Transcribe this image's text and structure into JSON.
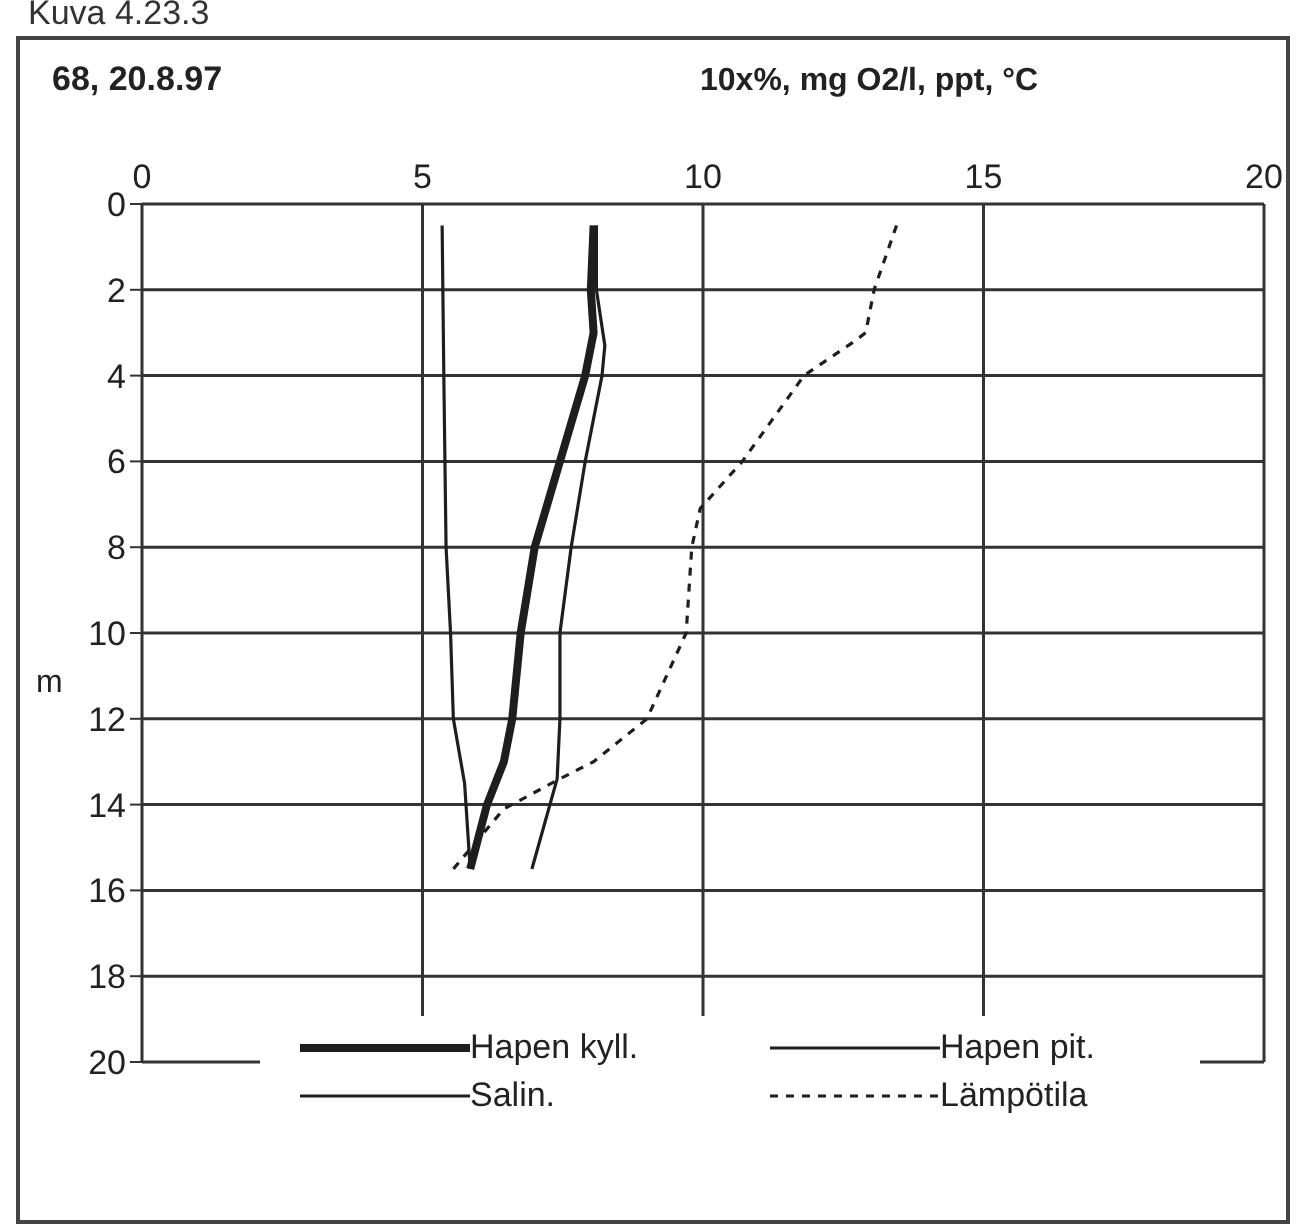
{
  "chart_data": {
    "type": "line",
    "title": "68, 20.8.97",
    "xlabel": "10x%, mg O2/l, ppt, °C",
    "ylabel": "m",
    "annotations": [
      "Kuva 4.23.3"
    ],
    "xlim": [
      0,
      20
    ],
    "xticks": [
      0,
      5,
      10,
      15,
      20
    ],
    "ylim": [
      20,
      0
    ],
    "yticks": [
      0,
      2,
      4,
      6,
      8,
      10,
      12,
      14,
      16,
      18,
      20
    ],
    "grid": true,
    "legend": "bottom",
    "marker": "none",
    "series": [
      {
        "name": "Hapen kyll.",
        "color": "#1e1e1e",
        "line_style": "solid",
        "x": [
          8.05,
          8.0,
          8.05,
          7.9,
          7.45,
          7.0,
          6.75,
          6.6,
          6.45,
          6.15,
          5.85
        ],
        "values": [
          0.5,
          2,
          3,
          4,
          6,
          8,
          10,
          12,
          13,
          14,
          15.5
        ]
      },
      {
        "name": "Hapen pit.",
        "color": "#1e1e1e",
        "line_style": "solid",
        "x": [
          8.1,
          8.1,
          8.25,
          8.2,
          7.9,
          7.65,
          7.45,
          7.45,
          7.4,
          6.95
        ],
        "values": [
          0.5,
          2,
          3.3,
          4,
          6,
          8,
          10,
          12,
          13.4,
          15.5
        ]
      },
      {
        "name": "Salin.",
        "color": "#1e1e1e",
        "line_style": "solid",
        "x": [
          5.35,
          5.38,
          5.42,
          5.5,
          5.55,
          5.75,
          5.85
        ],
        "values": [
          0.5,
          4,
          8,
          10,
          12,
          13.5,
          15.5
        ]
      },
      {
        "name": "Lämpötila",
        "color": "#1e1e1e",
        "line_style": "dashed",
        "x": [
          13.45,
          13.05,
          12.9,
          12.7,
          11.8,
          10.7,
          9.95,
          9.8,
          9.7,
          9.0,
          8.05,
          7.45,
          6.45,
          5.55
        ],
        "values": [
          0.5,
          2,
          3,
          3.2,
          4,
          6,
          7.1,
          8,
          10,
          12,
          13,
          13.4,
          14.1,
          15.5
        ]
      }
    ]
  }
}
